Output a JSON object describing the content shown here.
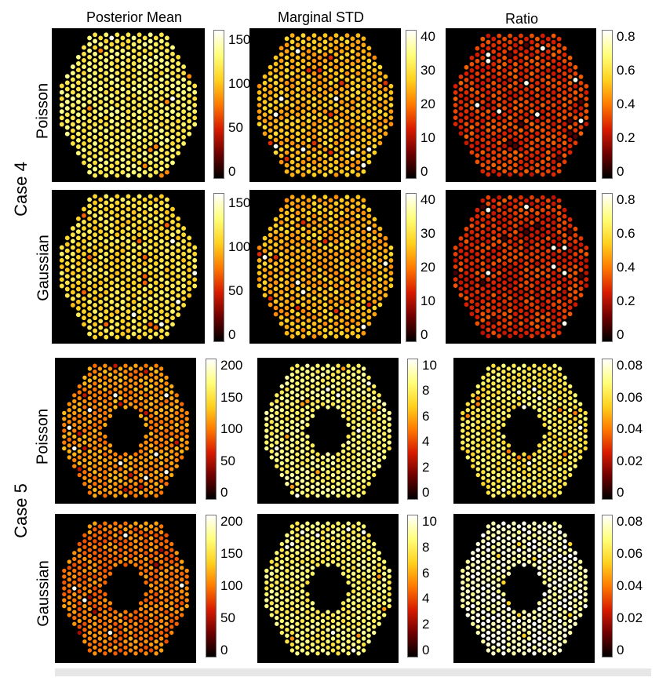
{
  "columns": [
    "Posterior Mean",
    "Marginal STD",
    "Ratio"
  ],
  "cases": [
    {
      "label": "Case 4",
      "rows": [
        "Poisson",
        "Gaussian"
      ]
    },
    {
      "label": "Case 5",
      "rows": [
        "Poisson",
        "Gaussian"
      ]
    }
  ],
  "colorbars": [
    [
      [
        "150",
        "100",
        "50",
        "0"
      ],
      [
        "40",
        "30",
        "20",
        "10",
        "0"
      ],
      [
        "0.8",
        "0.6",
        "0.4",
        "0.2",
        "0"
      ]
    ],
    [
      [
        "150",
        "100",
        "50",
        "0"
      ],
      [
        "40",
        "30",
        "20",
        "10",
        "0"
      ],
      [
        "0.8",
        "0.6",
        "0.4",
        "0.2",
        "0"
      ]
    ],
    [
      [
        "200",
        "150",
        "100",
        "50",
        "0"
      ],
      [
        "10",
        "8",
        "6",
        "4",
        "2",
        "0"
      ],
      [
        "0.08",
        "0.06",
        "0.04",
        "0.02",
        "0"
      ]
    ],
    [
      [
        "200",
        "150",
        "100",
        "50",
        "0"
      ],
      [
        "10",
        "8",
        "6",
        "4",
        "2",
        "0"
      ],
      [
        "0.08",
        "0.06",
        "0.04",
        "0.02",
        "0"
      ]
    ]
  ],
  "colormap": [
    "#000000",
    "#6e0000",
    "#d81b00",
    "#ff7a00",
    "#ffd21f",
    "#ffff7a",
    "#ffffff"
  ],
  "panel_fill_levels": [
    [
      0.78,
      0.62,
      0.38
    ],
    [
      0.71,
      0.61,
      0.36
    ],
    [
      0.55,
      0.82,
      0.76
    ],
    [
      0.5,
      0.8,
      0.93
    ]
  ]
}
